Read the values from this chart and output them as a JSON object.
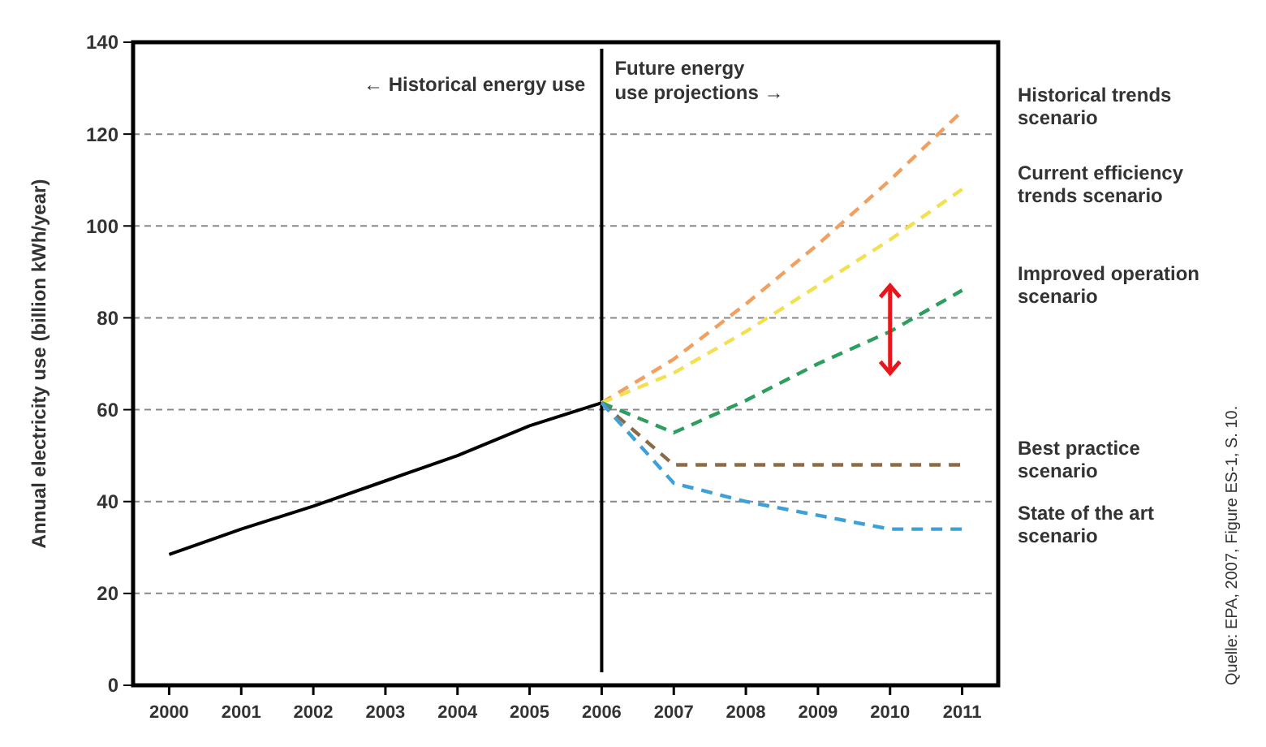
{
  "chart_data": {
    "type": "line",
    "ylabel": "Annual electricity use (billion kWh/year)",
    "series": [
      {
        "name": null,
        "color": "#000000",
        "line_style": "solid",
        "x": [
          2000,
          2001,
          2002,
          2003,
          2004,
          2005,
          2006
        ],
        "values": [
          28.5,
          34,
          39,
          44.5,
          50,
          56.5,
          61.5
        ]
      },
      {
        "name": "Historical trends scenario",
        "color": "#f0a060",
        "line_style": "dashed",
        "x": [
          2006,
          2007,
          2008,
          2009,
          2010,
          2011
        ],
        "values": [
          61.5,
          71,
          83,
          96,
          110,
          125
        ]
      },
      {
        "name": "Current efficiency trends scenario",
        "color": "#f2e050",
        "line_style": "dashed",
        "x": [
          2006,
          2007,
          2008,
          2009,
          2010,
          2011
        ],
        "values": [
          61.5,
          68,
          77,
          87,
          97,
          108
        ]
      },
      {
        "name": "Improved operation scenario",
        "color": "#2e9e5e",
        "line_style": "dashed",
        "x": [
          2006,
          2007,
          2008,
          2009,
          2010,
          2011
        ],
        "values": [
          61.5,
          55,
          62,
          70,
          77,
          86
        ]
      },
      {
        "name": "Best practice scenario",
        "color": "#8b6b4a",
        "line_style": "dashed",
        "x": [
          2006,
          2007,
          2008,
          2009,
          2010,
          2011
        ],
        "values": [
          61.5,
          48,
          48,
          48,
          48,
          48
        ]
      },
      {
        "name": "State of the art scenario",
        "color": "#3fa0d8",
        "line_style": "dashed",
        "x": [
          2006,
          2007,
          2008,
          2009,
          2010,
          2011
        ],
        "values": [
          61.5,
          44,
          40,
          37,
          34,
          34
        ]
      }
    ],
    "xlim": [
      1999.5,
      2011.5
    ],
    "xticks": [
      2000,
      2001,
      2002,
      2003,
      2004,
      2005,
      2006,
      2007,
      2008,
      2009,
      2010,
      2011
    ],
    "ylim": [
      0,
      140
    ],
    "yticks": [
      0,
      20,
      40,
      60,
      80,
      100,
      120,
      140
    ],
    "grid": "y",
    "legend": false,
    "ref_lines": [
      {
        "axis": "x",
        "value": 2006,
        "color": "#000000"
      }
    ],
    "annotations": [
      "← Historical energy use",
      "Future energy use projections →",
      "Quelle: EPA, 2007, Figure ES-1, S. 10."
    ]
  }
}
